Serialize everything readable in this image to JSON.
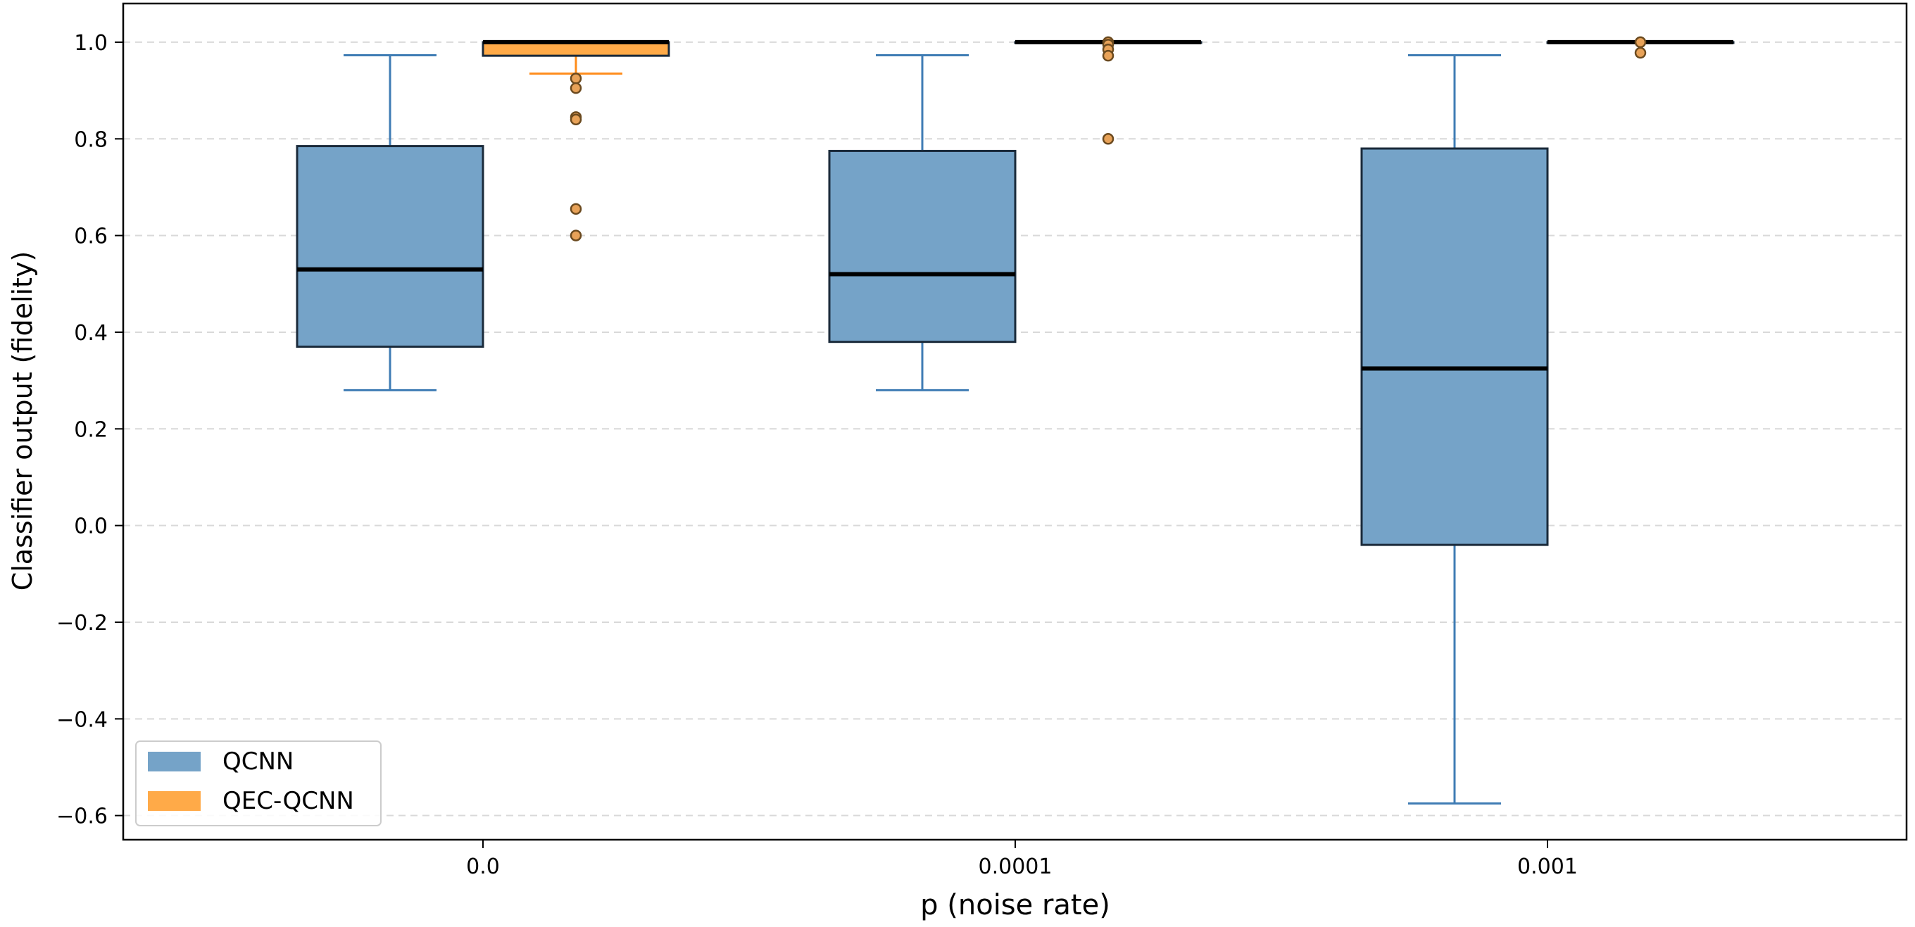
{
  "chart_data": {
    "type": "boxplot",
    "xlabel": "p (noise rate)",
    "ylabel": "Classifier output (fidelity)",
    "categories": [
      "0.0",
      "0.0001",
      "0.001"
    ],
    "ylim": [
      -0.65,
      1.08
    ],
    "yticks": [
      -0.6,
      -0.4,
      -0.2,
      0.0,
      0.2,
      0.4,
      0.6,
      0.8,
      1.0
    ],
    "ytick_labels": [
      "−0.6",
      "−0.4",
      "−0.2",
      "0.0",
      "0.2",
      "0.4",
      "0.6",
      "0.8",
      "1.0"
    ],
    "grid": "horizontal, dashed",
    "legend_position": "lower-left",
    "series": [
      {
        "name": "QCNN",
        "color": "#75a3c8",
        "whisker_color": "#3f7cb4",
        "boxes": [
          {
            "category": "0.0",
            "whislo": 0.28,
            "q1": 0.37,
            "med": 0.53,
            "q3": 0.785,
            "whishi": 0.973,
            "fliers": []
          },
          {
            "category": "0.0001",
            "whislo": 0.28,
            "q1": 0.38,
            "med": 0.52,
            "q3": 0.775,
            "whishi": 0.973,
            "fliers": []
          },
          {
            "category": "0.001",
            "whislo": -0.575,
            "q1": -0.04,
            "med": 0.325,
            "q3": 0.78,
            "whishi": 0.973,
            "fliers": []
          }
        ]
      },
      {
        "name": "QEC-QCNN",
        "color": "#ffaa48",
        "whisker_color": "#ff8c1a",
        "boxes": [
          {
            "category": "0.0",
            "whislo": 0.935,
            "q1": 0.972,
            "med": 1.0,
            "q3": 1.0,
            "whishi": 1.0,
            "fliers": [
              0.925,
              0.905,
              0.845,
              0.84,
              0.655,
              0.6
            ]
          },
          {
            "category": "0.0001",
            "whislo": 1.0,
            "q1": 1.0,
            "med": 1.0,
            "q3": 1.0,
            "whishi": 1.0,
            "fliers": [
              1.0,
              0.995,
              0.985,
              0.972,
              0.8
            ]
          },
          {
            "category": "0.001",
            "whislo": 1.0,
            "q1": 1.0,
            "med": 1.0,
            "q3": 1.0,
            "whishi": 1.0,
            "fliers": [
              1.0,
              0.978
            ]
          }
        ]
      }
    ]
  }
}
